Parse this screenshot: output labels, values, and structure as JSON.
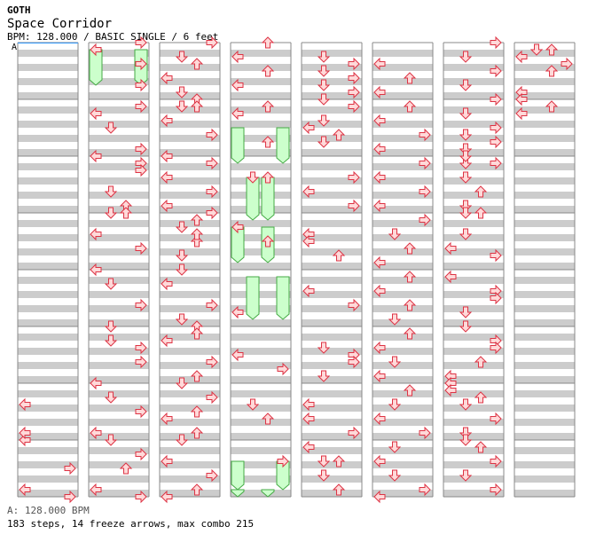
{
  "header": {
    "group": "GOTH",
    "title": "Space Corridor",
    "info": "BPM: 128.000 / BASIC SINGLE / 6 feet",
    "section_marker": "A"
  },
  "footer": {
    "bpm_line": "A: 128.000 BPM",
    "stats_line": "183 steps, 14 freeze arrows, max combo 215"
  },
  "colors": {
    "stripe": "#cccccc",
    "measure_line": "#888888",
    "arrow_fill": "#ffd9d9",
    "arrow_stroke": "#dd3344",
    "freeze_fill": "#ccffcc",
    "freeze_stroke": "#44aa44",
    "start_line": "#3399ff"
  },
  "chart_data": {
    "type": "step-chart",
    "lanes": [
      "left",
      "down",
      "up",
      "right"
    ],
    "measures_per_column": 8,
    "freeze_count": 14,
    "columns": [
      {
        "steps": [
          [
            7,
            0
          ],
          [
            7.5,
            3
          ],
          [
            7.875,
            0
          ],
          [
            8,
            3
          ],
          [
            6.875,
            0
          ],
          [
            6.375,
            0
          ]
        ],
        "freezes": []
      },
      {
        "steps": [
          [
            0,
            3
          ],
          [
            0.125,
            0
          ],
          [
            0.375,
            3
          ],
          [
            1.25,
            0
          ],
          [
            1.5,
            1
          ],
          [
            1.875,
            3
          ],
          [
            2,
            0
          ],
          [
            2.125,
            3
          ],
          [
            2.25,
            3
          ],
          [
            2.625,
            1
          ],
          [
            2.875,
            2
          ],
          [
            3.0,
            1
          ],
          [
            3,
            2
          ],
          [
            3.375,
            0
          ],
          [
            3.625,
            3
          ],
          [
            4,
            0
          ],
          [
            4.25,
            1
          ],
          [
            4.625,
            3
          ],
          [
            5,
            1
          ],
          [
            5.25,
            1
          ],
          [
            5.375,
            3
          ],
          [
            5.625,
            3
          ],
          [
            6,
            0
          ],
          [
            6.25,
            1
          ],
          [
            6.5,
            3
          ],
          [
            6.875,
            0
          ],
          [
            7,
            1
          ],
          [
            7.25,
            3
          ],
          [
            7.5,
            2
          ],
          [
            7.875,
            0
          ],
          [
            8,
            3
          ],
          [
            0.75,
            3
          ],
          [
            1.125,
            3
          ]
        ],
        "freezes": [
          [
            0.125,
            0.75,
            0
          ],
          [
            0.125,
            0.75,
            3
          ]
        ]
      },
      {
        "steps": [
          [
            0,
            3
          ],
          [
            0.25,
            1
          ],
          [
            0.375,
            2
          ],
          [
            0.625,
            0
          ],
          [
            0.875,
            1
          ],
          [
            1.0,
            2
          ],
          [
            1.125,
            1
          ],
          [
            1.375,
            0
          ],
          [
            1.625,
            3
          ],
          [
            2,
            0
          ],
          [
            2.125,
            3
          ],
          [
            2.375,
            0
          ],
          [
            2.625,
            3
          ],
          [
            2.875,
            0
          ],
          [
            3,
            3
          ],
          [
            3.25,
            1
          ],
          [
            3.5,
            2
          ],
          [
            3.75,
            1
          ],
          [
            4,
            1
          ],
          [
            4.25,
            0
          ],
          [
            4.625,
            3
          ],
          [
            4.875,
            1
          ],
          [
            5,
            2
          ],
          [
            5.25,
            0
          ],
          [
            5.625,
            3
          ],
          [
            5.875,
            2
          ],
          [
            6,
            1
          ],
          [
            6.25,
            3
          ],
          [
            6.625,
            0
          ],
          [
            6.875,
            2
          ],
          [
            7,
            1
          ],
          [
            7.375,
            0
          ],
          [
            7.625,
            3
          ],
          [
            7.875,
            2
          ],
          [
            8,
            0
          ],
          [
            1.125,
            2
          ],
          [
            3.125,
            2
          ],
          [
            3.375,
            2
          ],
          [
            5.125,
            2
          ],
          [
            6.5,
            2
          ]
        ],
        "freezes": []
      },
      {
        "steps": [
          [
            0,
            2
          ],
          [
            0.25,
            0
          ],
          [
            0.5,
            2
          ],
          [
            0.75,
            0
          ],
          [
            1.125,
            2
          ],
          [
            1.25,
            0
          ],
          [
            1.75,
            2
          ],
          [
            2.375,
            1
          ],
          [
            2.375,
            2
          ],
          [
            3.25,
            0
          ],
          [
            3.5,
            2
          ],
          [
            4.75,
            0
          ],
          [
            5.5,
            0
          ],
          [
            5.75,
            3
          ],
          [
            6.375,
            1
          ],
          [
            6.625,
            2
          ],
          [
            7.375,
            3
          ]
        ],
        "freezes": [
          [
            1.5,
            2.125,
            0
          ],
          [
            1.5,
            2.125,
            3
          ],
          [
            2.375,
            3.125,
            1
          ],
          [
            2.375,
            3.125,
            2
          ],
          [
            3.25,
            3.875,
            0
          ],
          [
            3.25,
            3.875,
            2
          ],
          [
            4.125,
            4.875,
            1
          ],
          [
            4.125,
            4.875,
            3
          ],
          [
            7.375,
            7.875,
            0
          ],
          [
            7.375,
            7.875,
            3
          ],
          [
            7.875,
            8,
            0
          ],
          [
            7.875,
            8,
            2
          ]
        ]
      },
      {
        "steps": [
          [
            0.25,
            1
          ],
          [
            0.375,
            3
          ],
          [
            0.5,
            1
          ],
          [
            0.625,
            3
          ],
          [
            0.75,
            1
          ],
          [
            0.875,
            3
          ],
          [
            1,
            1
          ],
          [
            1.125,
            3
          ],
          [
            1.375,
            1
          ],
          [
            1.625,
            2
          ],
          [
            1.75,
            1
          ],
          [
            2.375,
            3
          ],
          [
            2.625,
            0
          ],
          [
            2.875,
            3
          ],
          [
            3.375,
            0
          ],
          [
            3.5,
            0
          ],
          [
            3.75,
            2
          ],
          [
            4.375,
            0
          ],
          [
            4.625,
            3
          ],
          [
            5.375,
            1
          ],
          [
            5.5,
            3
          ],
          [
            5.625,
            3
          ],
          [
            5.875,
            1
          ],
          [
            6.375,
            0
          ],
          [
            6.625,
            0
          ],
          [
            6.875,
            3
          ],
          [
            7.125,
            0
          ],
          [
            7.375,
            1
          ],
          [
            7.375,
            2
          ],
          [
            7.625,
            1
          ],
          [
            7.875,
            2
          ],
          [
            1.5,
            0
          ]
        ],
        "freezes": []
      },
      {
        "steps": [
          [
            0.375,
            0
          ],
          [
            0.625,
            2
          ],
          [
            0.875,
            0
          ],
          [
            1.125,
            2
          ],
          [
            1.375,
            0
          ],
          [
            1.625,
            3
          ],
          [
            1.875,
            0
          ],
          [
            2.125,
            3
          ],
          [
            2.375,
            0
          ],
          [
            2.625,
            3
          ],
          [
            2.875,
            0
          ],
          [
            3.125,
            3
          ],
          [
            3.375,
            1
          ],
          [
            3.625,
            2
          ],
          [
            3.875,
            0
          ],
          [
            4.125,
            2
          ],
          [
            4.375,
            0
          ],
          [
            4.625,
            2
          ],
          [
            4.875,
            1
          ],
          [
            5.125,
            2
          ],
          [
            5.375,
            0
          ],
          [
            5.625,
            1
          ],
          [
            5.875,
            0
          ],
          [
            6.125,
            2
          ],
          [
            6.375,
            1
          ],
          [
            6.625,
            0
          ],
          [
            6.875,
            3
          ],
          [
            7.125,
            1
          ],
          [
            7.375,
            0
          ],
          [
            7.625,
            1
          ],
          [
            7.875,
            3
          ],
          [
            8,
            0
          ]
        ],
        "freezes": []
      },
      {
        "steps": [
          [
            0,
            3
          ],
          [
            0.25,
            1
          ],
          [
            0.5,
            3
          ],
          [
            0.75,
            1
          ],
          [
            1,
            3
          ],
          [
            1.25,
            1
          ],
          [
            1.5,
            3
          ],
          [
            1.625,
            1
          ],
          [
            1.75,
            3
          ],
          [
            1.875,
            1
          ],
          [
            2.125,
            1
          ],
          [
            2.125,
            3
          ],
          [
            2.375,
            1
          ],
          [
            2.625,
            2
          ],
          [
            2.875,
            1
          ],
          [
            3.0,
            1
          ],
          [
            3.0,
            2
          ],
          [
            3.375,
            1
          ],
          [
            3.625,
            0
          ],
          [
            3.75,
            3
          ],
          [
            4.125,
            0
          ],
          [
            4.375,
            3
          ],
          [
            4.5,
            3
          ],
          [
            4.75,
            1
          ],
          [
            5.0,
            1
          ],
          [
            5.25,
            3
          ],
          [
            5.375,
            3
          ],
          [
            5.625,
            2
          ],
          [
            5.875,
            0
          ],
          [
            6,
            0
          ],
          [
            6.125,
            0
          ],
          [
            6.375,
            1
          ],
          [
            6.625,
            3
          ],
          [
            6.875,
            1
          ],
          [
            7,
            1
          ],
          [
            7.125,
            2
          ],
          [
            7.375,
            3
          ],
          [
            7.625,
            1
          ],
          [
            7.875,
            3
          ],
          [
            1.875,
            1
          ],
          [
            2.0,
            1
          ],
          [
            6.25,
            2
          ]
        ],
        "freezes": []
      },
      {
        "steps": [
          [
            0.125,
            1
          ],
          [
            0.125,
            2
          ],
          [
            0.25,
            0
          ],
          [
            0.375,
            3
          ],
          [
            0.5,
            2
          ],
          [
            0.875,
            0
          ],
          [
            1.0,
            0
          ],
          [
            1.125,
            2
          ],
          [
            1.25,
            0
          ]
        ],
        "freezes": []
      }
    ]
  }
}
